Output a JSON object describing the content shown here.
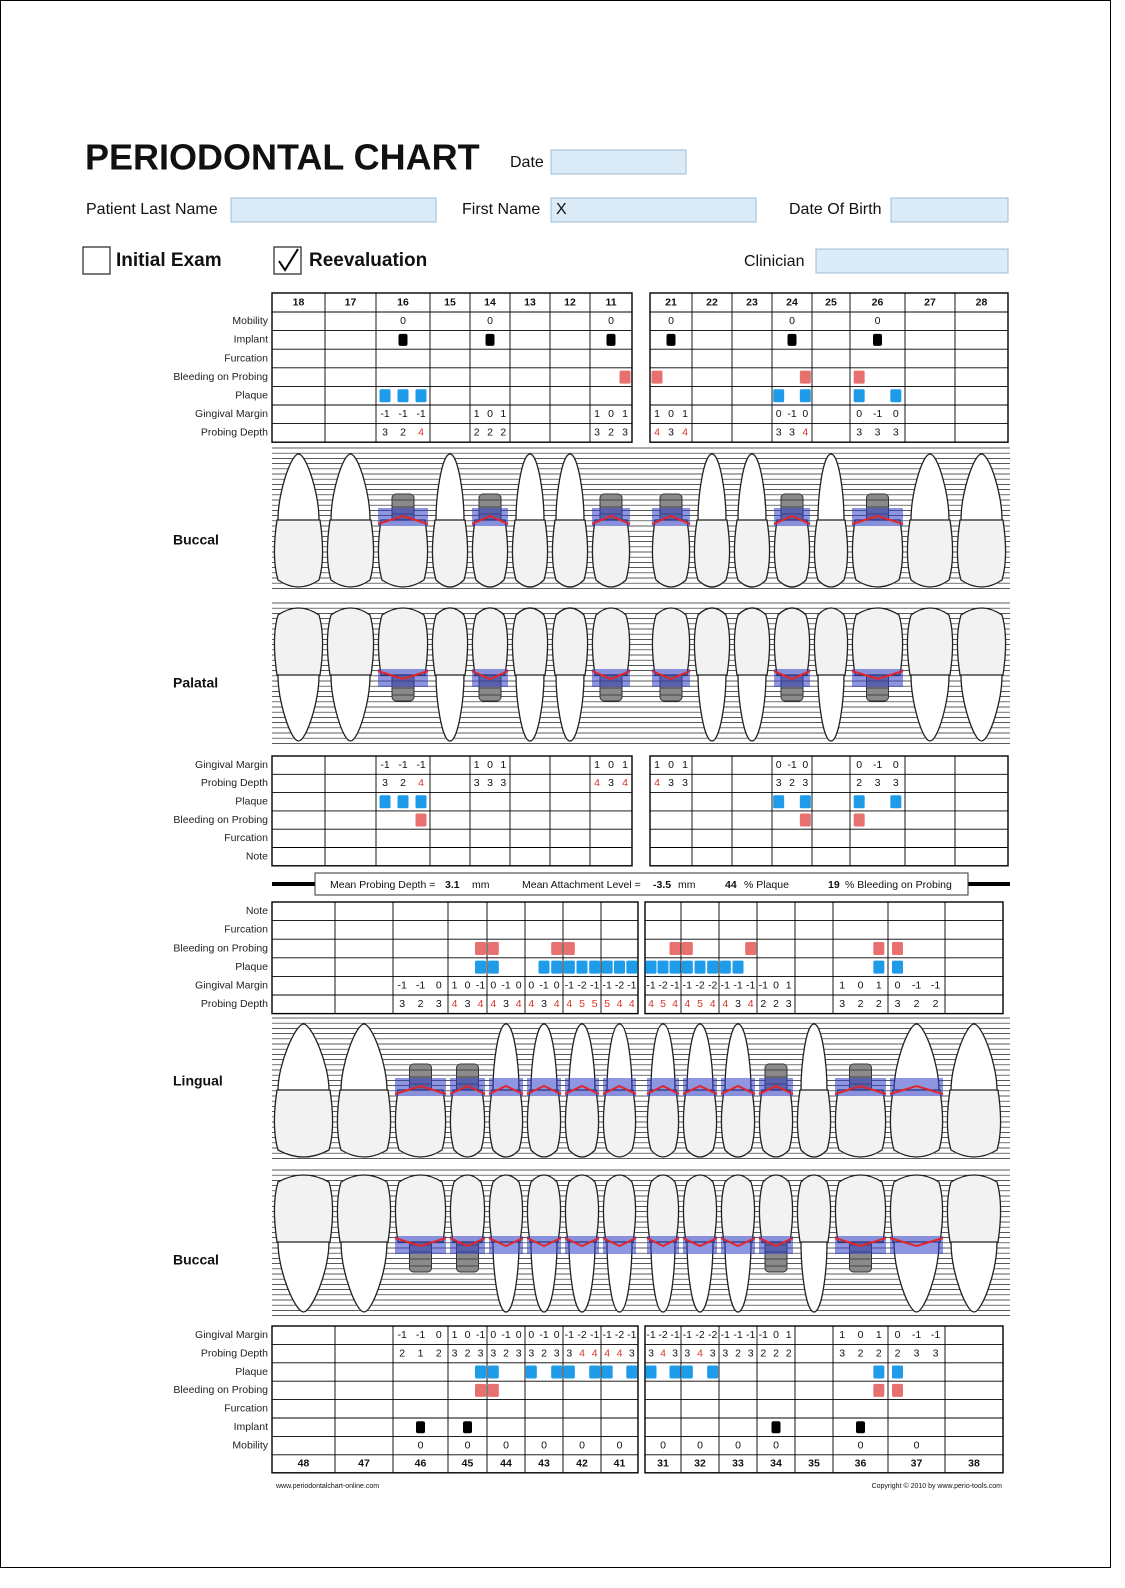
{
  "header": {
    "title": "PERIODONTAL CHART",
    "date_label": "Date",
    "last_name_label": "Patient Last Name",
    "first_name_label": "First Name",
    "first_name_value": "X",
    "dob_label": "Date Of Birth",
    "initial_exam_label": "Initial Exam",
    "reevaluation_label": "Reevaluation",
    "clinician_label": "Clinician"
  },
  "section_labels": {
    "upper_buccal": "Buccal",
    "upper_palatal": "Palatal",
    "lower_lingual": "Lingual",
    "lower_buccal": "Buccal"
  },
  "upper_teeth": [
    18,
    17,
    16,
    15,
    14,
    13,
    12,
    11,
    21,
    22,
    23,
    24,
    25,
    26,
    27,
    28
  ],
  "lower_teeth": [
    48,
    47,
    46,
    45,
    44,
    43,
    42,
    41,
    31,
    32,
    33,
    34,
    35,
    36,
    37,
    38
  ],
  "upper_buccal": {
    "rows": [
      "Mobility",
      "Implant",
      "Furcation",
      "Bleeding on Probing",
      "Plaque",
      "Gingival Margin",
      "Probing Depth"
    ],
    "mobility": [
      null,
      null,
      0,
      null,
      0,
      null,
      null,
      0,
      0,
      null,
      null,
      0,
      null,
      0,
      null,
      null
    ],
    "implant": [
      false,
      false,
      true,
      false,
      true,
      false,
      false,
      true,
      true,
      false,
      false,
      true,
      false,
      true,
      false,
      false
    ],
    "bleeding": [
      null,
      null,
      null,
      null,
      null,
      null,
      null,
      [
        false,
        false,
        true
      ],
      [
        true,
        false,
        false
      ],
      null,
      null,
      [
        false,
        false,
        true
      ],
      null,
      [
        true,
        false,
        false
      ],
      null,
      null
    ],
    "plaque": [
      null,
      null,
      [
        true,
        true,
        true
      ],
      null,
      null,
      null,
      null,
      null,
      null,
      null,
      null,
      [
        true,
        false,
        true
      ],
      null,
      [
        true,
        false,
        true
      ],
      null,
      null
    ],
    "gm": [
      null,
      null,
      [
        -1,
        -1,
        -1
      ],
      null,
      [
        1,
        0,
        1
      ],
      null,
      null,
      [
        1,
        0,
        1
      ],
      [
        1,
        0,
        1
      ],
      null,
      null,
      [
        0,
        -1,
        0
      ],
      null,
      [
        0,
        -1,
        0
      ],
      null,
      null
    ],
    "pd": [
      null,
      null,
      [
        3,
        2,
        4
      ],
      null,
      [
        2,
        2,
        2
      ],
      null,
      null,
      [
        3,
        2,
        3
      ],
      [
        4,
        3,
        4
      ],
      null,
      null,
      [
        3,
        3,
        4
      ],
      null,
      [
        3,
        3,
        3
      ],
      null,
      null
    ]
  },
  "upper_palatal": {
    "rows": [
      "Gingival Margin",
      "Probing Depth",
      "Plaque",
      "Bleeding on Probing",
      "Furcation",
      "Note"
    ],
    "gm": [
      null,
      null,
      [
        -1,
        -1,
        -1
      ],
      null,
      [
        1,
        0,
        1
      ],
      null,
      null,
      [
        1,
        0,
        1
      ],
      [
        1,
        0,
        1
      ],
      null,
      null,
      [
        0,
        -1,
        0
      ],
      null,
      [
        0,
        -1,
        0
      ],
      null,
      null
    ],
    "pd": [
      null,
      null,
      [
        3,
        2,
        4
      ],
      null,
      [
        3,
        3,
        3
      ],
      null,
      null,
      [
        4,
        3,
        4
      ],
      [
        4,
        3,
        3
      ],
      null,
      null,
      [
        3,
        2,
        3
      ],
      null,
      [
        2,
        3,
        3
      ],
      null,
      null
    ],
    "plaque": [
      null,
      null,
      [
        true,
        true,
        true
      ],
      null,
      null,
      null,
      null,
      null,
      null,
      null,
      null,
      [
        true,
        false,
        true
      ],
      null,
      [
        true,
        false,
        true
      ],
      null,
      null
    ],
    "bleeding": [
      null,
      null,
      [
        false,
        false,
        true
      ],
      null,
      null,
      null,
      null,
      null,
      null,
      null,
      null,
      [
        false,
        false,
        true
      ],
      null,
      [
        true,
        false,
        false
      ],
      null,
      null
    ]
  },
  "summary": {
    "mean_pd_label": "Mean Probing Depth =",
    "mean_pd": 3.1,
    "mean_pd_unit": "mm",
    "mean_al_label": "Mean Attachment Level =",
    "mean_al": -3.5,
    "mean_al_unit": "mm",
    "plaque_pct": 44,
    "plaque_label": "% Plaque",
    "bop_pct": 19,
    "bop_label": "% Bleeding on Probing"
  },
  "lower_lingual": {
    "rows": [
      "Note",
      "Furcation",
      "Bleeding on Probing",
      "Plaque",
      "Gingival Margin",
      "Probing Depth"
    ],
    "bleeding": [
      null,
      null,
      null,
      [
        false,
        false,
        true
      ],
      [
        true,
        false,
        false
      ],
      [
        false,
        false,
        true
      ],
      [
        true,
        false,
        false
      ],
      null,
      [
        false,
        false,
        true
      ],
      [
        true,
        false,
        false
      ],
      [
        false,
        false,
        true
      ],
      null,
      null,
      [
        false,
        false,
        true
      ],
      [
        true,
        false,
        false
      ],
      null
    ],
    "plaque": [
      null,
      null,
      null,
      [
        false,
        false,
        true
      ],
      [
        true,
        false,
        false
      ],
      [
        false,
        true,
        true
      ],
      [
        true,
        true,
        true
      ],
      [
        true,
        true,
        true
      ],
      [
        true,
        true,
        true
      ],
      [
        true,
        true,
        true
      ],
      [
        true,
        true,
        false
      ],
      null,
      null,
      [
        false,
        false,
        true
      ],
      [
        true,
        false,
        false
      ],
      null
    ],
    "gm": [
      null,
      null,
      [
        -1,
        -1,
        0
      ],
      [
        1,
        0,
        -1
      ],
      [
        0,
        -1,
        0
      ],
      [
        0,
        -1,
        0
      ],
      [
        -1,
        -2,
        -1
      ],
      [
        -1,
        -2,
        -1
      ],
      [
        -1,
        -2,
        -1
      ],
      [
        -1,
        -2,
        -2
      ],
      [
        -1,
        -1,
        -1
      ],
      [
        -1,
        0,
        1
      ],
      null,
      [
        1,
        0,
        1
      ],
      [
        0,
        -1,
        -1
      ],
      null
    ],
    "pd": [
      null,
      null,
      [
        3,
        2,
        3
      ],
      [
        4,
        3,
        4
      ],
      [
        4,
        3,
        4
      ],
      [
        4,
        3,
        4
      ],
      [
        4,
        5,
        5
      ],
      [
        5,
        4,
        4
      ],
      [
        4,
        5,
        4
      ],
      [
        4,
        5,
        4
      ],
      [
        4,
        3,
        4
      ],
      [
        2,
        2,
        3
      ],
      null,
      [
        3,
        2,
        2
      ],
      [
        3,
        2,
        2
      ],
      null
    ]
  },
  "lower_buccal": {
    "rows": [
      "Gingival Margin",
      "Probing Depth",
      "Plaque",
      "Bleeding on Probing",
      "Furcation",
      "Implant",
      "Mobility"
    ],
    "gm": [
      null,
      null,
      [
        -1,
        -1,
        0
      ],
      [
        1,
        0,
        -1
      ],
      [
        0,
        -1,
        0
      ],
      [
        0,
        -1,
        0
      ],
      [
        -1,
        -2,
        -1
      ],
      [
        -1,
        -2,
        -1
      ],
      [
        -1,
        -2,
        -1
      ],
      [
        -1,
        -2,
        -2
      ],
      [
        -1,
        -1,
        -1
      ],
      [
        -1,
        0,
        1
      ],
      null,
      [
        1,
        0,
        1
      ],
      [
        0,
        -1,
        -1
      ],
      null
    ],
    "pd": [
      null,
      null,
      [
        2,
        1,
        2
      ],
      [
        3,
        2,
        3
      ],
      [
        3,
        2,
        3
      ],
      [
        3,
        2,
        3
      ],
      [
        3,
        4,
        4
      ],
      [
        4,
        4,
        3
      ],
      [
        3,
        4,
        3
      ],
      [
        3,
        4,
        3
      ],
      [
        3,
        2,
        3
      ],
      [
        2,
        2,
        2
      ],
      null,
      [
        3,
        2,
        2
      ],
      [
        2,
        3,
        3
      ],
      null
    ],
    "plaque": [
      null,
      null,
      null,
      [
        false,
        false,
        true
      ],
      [
        true,
        false,
        false
      ],
      [
        true,
        false,
        true
      ],
      [
        true,
        false,
        true
      ],
      [
        true,
        false,
        true
      ],
      [
        true,
        false,
        true
      ],
      [
        true,
        false,
        true
      ],
      null,
      null,
      null,
      [
        false,
        false,
        true
      ],
      [
        true,
        false,
        false
      ],
      null
    ],
    "bleeding": [
      null,
      null,
      null,
      [
        false,
        false,
        true
      ],
      [
        true,
        false,
        false
      ],
      null,
      null,
      null,
      null,
      null,
      null,
      null,
      null,
      [
        false,
        false,
        true
      ],
      [
        true,
        false,
        false
      ],
      null
    ],
    "implant": [
      false,
      false,
      true,
      true,
      false,
      false,
      false,
      false,
      false,
      false,
      false,
      true,
      false,
      true,
      false,
      false
    ],
    "mobility": [
      null,
      null,
      0,
      0,
      0,
      0,
      0,
      0,
      0,
      0,
      0,
      0,
      null,
      0,
      0,
      null
    ]
  },
  "footer": {
    "left": "www.periodontalchart-online.com",
    "right": "Copyright © 2010 by www.perio-tools.com"
  }
}
